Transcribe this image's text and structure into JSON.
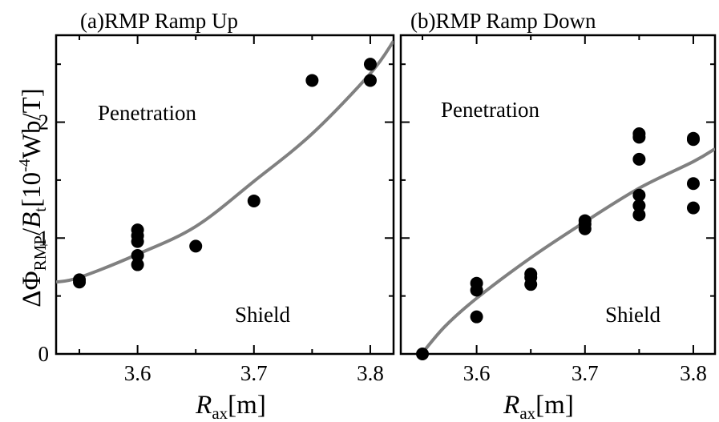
{
  "ylabel": {
    "prefix": "ΔΦ",
    "sub": "RMP",
    "mid": "/",
    "italic": "B",
    "sub2": "t",
    "bracket_open": "[10",
    "exp": "-4",
    "bracket_close": "Wb/T]"
  },
  "xlabel": {
    "italic": "R",
    "sub": "ax",
    "unit": "[m]"
  },
  "chart_data": [
    {
      "type": "scatter",
      "title": "(a)RMP Ramp Up",
      "xlim": [
        3.53,
        3.82
      ],
      "ylim": [
        0,
        2.75
      ],
      "x_ticks": [
        "3.6",
        "3.7",
        "3.8"
      ],
      "y_ticks": [
        "0",
        "1",
        "2"
      ],
      "annotations": [
        "Penetration",
        "Shield"
      ],
      "points": [
        {
          "x": 3.55,
          "y": 0.62
        },
        {
          "x": 3.55,
          "y": 0.64
        },
        {
          "x": 3.6,
          "y": 0.77
        },
        {
          "x": 3.6,
          "y": 0.85
        },
        {
          "x": 3.6,
          "y": 0.97
        },
        {
          "x": 3.6,
          "y": 1.02
        },
        {
          "x": 3.6,
          "y": 1.07
        },
        {
          "x": 3.65,
          "y": 0.93
        },
        {
          "x": 3.7,
          "y": 1.32
        },
        {
          "x": 3.75,
          "y": 2.36
        },
        {
          "x": 3.8,
          "y": 2.36
        },
        {
          "x": 3.8,
          "y": 2.5
        }
      ],
      "fit_curve": [
        {
          "x": 3.53,
          "y": 0.62
        },
        {
          "x": 3.55,
          "y": 0.66
        },
        {
          "x": 3.6,
          "y": 0.86
        },
        {
          "x": 3.65,
          "y": 1.1
        },
        {
          "x": 3.7,
          "y": 1.49
        },
        {
          "x": 3.75,
          "y": 1.9
        },
        {
          "x": 3.8,
          "y": 2.42
        },
        {
          "x": 3.82,
          "y": 2.7
        }
      ]
    },
    {
      "type": "scatter",
      "title": "(b)RMP Ramp Down",
      "xlim": [
        3.53,
        3.82
      ],
      "ylim": [
        0,
        2.75
      ],
      "x_ticks": [
        "3.6",
        "3.7",
        "3.8"
      ],
      "y_ticks": [
        "0",
        "1",
        "2"
      ],
      "annotations": [
        "Penetration",
        "Shield"
      ],
      "points": [
        {
          "x": 3.55,
          "y": 0.0
        },
        {
          "x": 3.6,
          "y": 0.32
        },
        {
          "x": 3.6,
          "y": 0.55
        },
        {
          "x": 3.6,
          "y": 0.61
        },
        {
          "x": 3.65,
          "y": 0.6
        },
        {
          "x": 3.65,
          "y": 0.66
        },
        {
          "x": 3.65,
          "y": 0.69
        },
        {
          "x": 3.7,
          "y": 1.08
        },
        {
          "x": 3.7,
          "y": 1.12
        },
        {
          "x": 3.7,
          "y": 1.15
        },
        {
          "x": 3.75,
          "y": 1.2
        },
        {
          "x": 3.75,
          "y": 1.28
        },
        {
          "x": 3.75,
          "y": 1.37
        },
        {
          "x": 3.75,
          "y": 1.68
        },
        {
          "x": 3.75,
          "y": 1.87
        },
        {
          "x": 3.75,
          "y": 1.9
        },
        {
          "x": 3.8,
          "y": 1.26
        },
        {
          "x": 3.8,
          "y": 1.47
        },
        {
          "x": 3.8,
          "y": 1.85
        },
        {
          "x": 3.8,
          "y": 1.86
        }
      ],
      "fit_curve": [
        {
          "x": 3.545,
          "y": -0.05
        },
        {
          "x": 3.57,
          "y": 0.23
        },
        {
          "x": 3.6,
          "y": 0.48
        },
        {
          "x": 3.65,
          "y": 0.83
        },
        {
          "x": 3.7,
          "y": 1.14
        },
        {
          "x": 3.75,
          "y": 1.43
        },
        {
          "x": 3.8,
          "y": 1.66
        },
        {
          "x": 3.82,
          "y": 1.77
        }
      ]
    }
  ]
}
